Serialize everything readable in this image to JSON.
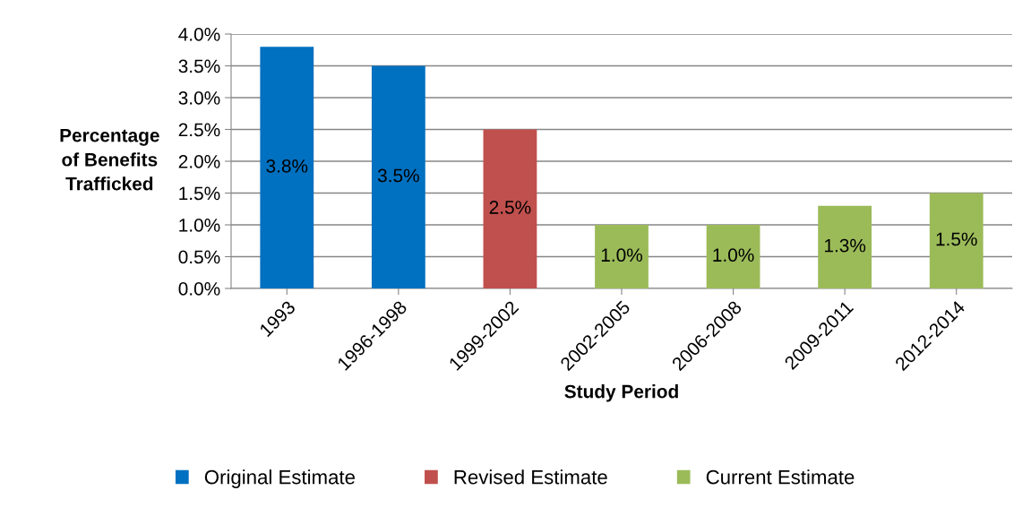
{
  "chart_data": {
    "type": "bar",
    "stacked": true,
    "categories": [
      "1993",
      "1996-1998",
      "1999-2002",
      "2002-2005",
      "2006-2008",
      "2009-2011",
      "2012-2014"
    ],
    "series": [
      {
        "name": "Original Estimate",
        "color": "#0070c0",
        "values": [
          3.8,
          3.5,
          null,
          null,
          null,
          null,
          null
        ],
        "value_labels": [
          "3.8%",
          "3.5%",
          null,
          null,
          null,
          null,
          null
        ]
      },
      {
        "name": "Revised Estimate",
        "color": "#c0504d",
        "values": [
          null,
          null,
          2.5,
          null,
          null,
          null,
          null
        ],
        "value_labels": [
          null,
          null,
          "2.5%",
          null,
          null,
          null,
          null
        ]
      },
      {
        "name": "Current Estimate",
        "color": "#9bbb59",
        "values": [
          null,
          null,
          null,
          1.0,
          1.0,
          1.3,
          1.5
        ],
        "value_labels": [
          null,
          null,
          null,
          "1.0%",
          "1.0%",
          "1.3%",
          "1.5%"
        ]
      }
    ],
    "xlabel": "Study Period",
    "ylabel": "Percentage\nof Benefits\nTrafficked",
    "ylim": [
      0,
      4.0
    ],
    "yticks": [
      {
        "value": 0,
        "label": "0.0%"
      },
      {
        "value": 0.5,
        "label": "0.5%"
      },
      {
        "value": 1.0,
        "label": "1.0%"
      },
      {
        "value": 1.5,
        "label": "1.5%"
      },
      {
        "value": 2.0,
        "label": "2.0%"
      },
      {
        "value": 2.5,
        "label": "2.5%"
      },
      {
        "value": 3.0,
        "label": "3.0%"
      },
      {
        "value": 3.5,
        "label": "3.5%"
      },
      {
        "value": 4.0,
        "label": "4.0%"
      }
    ],
    "grid": "y",
    "legend": "bottom"
  }
}
